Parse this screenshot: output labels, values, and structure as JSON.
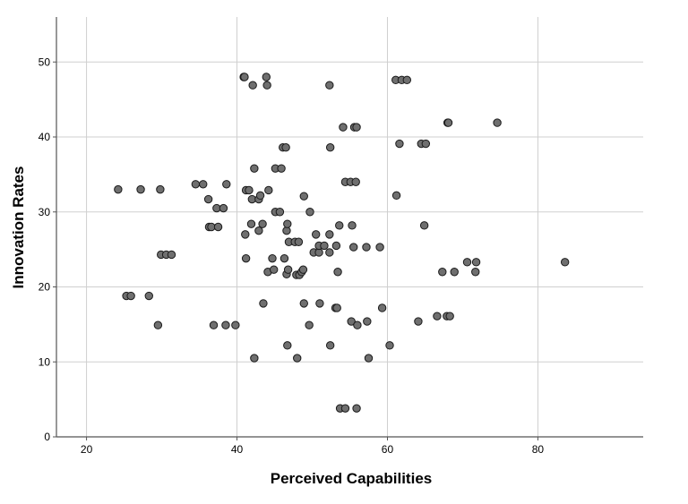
{
  "chart_data": {
    "type": "scatter",
    "xlabel": "Perceived Capabilities",
    "ylabel": "Innovation Rates",
    "xlim": [
      16,
      94
    ],
    "ylim": [
      0,
      56
    ],
    "xticks": [
      20,
      40,
      60,
      80
    ],
    "yticks": [
      0,
      10,
      20,
      30,
      40,
      50
    ],
    "grid": true,
    "colors": {
      "point_fill": "#6f6f6f",
      "point_stroke": "#1a1a1a",
      "grid": "#cfcfcf",
      "axis": "#555555"
    },
    "points": [
      [
        24.2,
        33.0
      ],
      [
        27.2,
        33.0
      ],
      [
        29.8,
        33.0
      ],
      [
        25.3,
        18.8
      ],
      [
        25.9,
        18.8
      ],
      [
        28.3,
        18.8
      ],
      [
        29.5,
        14.9
      ],
      [
        29.9,
        24.3
      ],
      [
        30.6,
        24.3
      ],
      [
        31.3,
        24.3
      ],
      [
        34.5,
        33.7
      ],
      [
        35.5,
        33.7
      ],
      [
        36.2,
        31.7
      ],
      [
        36.3,
        28.0
      ],
      [
        36.6,
        28.0
      ],
      [
        37.3,
        30.5
      ],
      [
        37.5,
        28.0
      ],
      [
        38.2,
        30.5
      ],
      [
        38.6,
        33.7
      ],
      [
        36.9,
        14.9
      ],
      [
        38.5,
        14.9
      ],
      [
        39.8,
        14.9
      ],
      [
        40.9,
        48.0
      ],
      [
        41.0,
        48.0
      ],
      [
        42.1,
        46.9
      ],
      [
        43.9,
        48.0
      ],
      [
        44.0,
        46.9
      ],
      [
        41.2,
        32.9
      ],
      [
        41.6,
        32.9
      ],
      [
        42.3,
        35.8
      ],
      [
        42.0,
        31.7
      ],
      [
        42.9,
        31.7
      ],
      [
        43.1,
        32.2
      ],
      [
        44.2,
        32.9
      ],
      [
        45.1,
        35.8
      ],
      [
        45.9,
        35.8
      ],
      [
        41.9,
        28.4
      ],
      [
        43.4,
        28.4
      ],
      [
        42.9,
        27.5
      ],
      [
        45.1,
        30.0
      ],
      [
        45.7,
        30.0
      ],
      [
        46.1,
        38.6
      ],
      [
        46.5,
        38.6
      ],
      [
        41.1,
        27.0
      ],
      [
        41.2,
        23.8
      ],
      [
        44.1,
        22.0
      ],
      [
        44.9,
        22.3
      ],
      [
        44.7,
        23.8
      ],
      [
        46.3,
        23.8
      ],
      [
        46.6,
        27.5
      ],
      [
        46.7,
        28.4
      ],
      [
        46.9,
        26.0
      ],
      [
        47.7,
        26.0
      ],
      [
        48.2,
        26.0
      ],
      [
        46.6,
        21.7
      ],
      [
        46.8,
        22.3
      ],
      [
        47.9,
        21.6
      ],
      [
        48.3,
        21.6
      ],
      [
        48.6,
        22.0
      ],
      [
        48.8,
        22.3
      ],
      [
        48.9,
        32.1
      ],
      [
        43.5,
        17.8
      ],
      [
        42.3,
        10.5
      ],
      [
        46.7,
        12.2
      ],
      [
        48.0,
        10.5
      ],
      [
        48.9,
        17.8
      ],
      [
        49.6,
        14.9
      ],
      [
        49.7,
        30.0
      ],
      [
        50.2,
        24.6
      ],
      [
        50.9,
        24.6
      ],
      [
        50.5,
        27.0
      ],
      [
        50.9,
        25.5
      ],
      [
        51.6,
        25.5
      ],
      [
        52.3,
        27.0
      ],
      [
        52.3,
        24.6
      ],
      [
        53.2,
        25.5
      ],
      [
        51.0,
        17.8
      ],
      [
        52.3,
        46.9
      ],
      [
        52.4,
        38.6
      ],
      [
        52.4,
        12.2
      ],
      [
        53.1,
        17.2
      ],
      [
        53.3,
        17.2
      ],
      [
        53.4,
        22.0
      ],
      [
        53.6,
        28.2
      ],
      [
        55.3,
        28.2
      ],
      [
        54.1,
        41.3
      ],
      [
        55.6,
        41.3
      ],
      [
        55.9,
        41.3
      ],
      [
        54.4,
        34.0
      ],
      [
        55.1,
        34.0
      ],
      [
        55.8,
        34.0
      ],
      [
        55.5,
        25.3
      ],
      [
        57.2,
        25.3
      ],
      [
        59.0,
        25.3
      ],
      [
        55.2,
        15.4
      ],
      [
        56.0,
        14.9
      ],
      [
        57.3,
        15.4
      ],
      [
        59.3,
        17.2
      ],
      [
        57.5,
        10.5
      ],
      [
        60.3,
        12.2
      ],
      [
        53.7,
        3.8
      ],
      [
        54.4,
        3.8
      ],
      [
        55.9,
        3.8
      ],
      [
        61.1,
        47.6
      ],
      [
        61.9,
        47.6
      ],
      [
        62.6,
        47.6
      ],
      [
        61.6,
        39.1
      ],
      [
        64.5,
        39.1
      ],
      [
        65.1,
        39.1
      ],
      [
        61.2,
        32.2
      ],
      [
        64.9,
        28.2
      ],
      [
        64.1,
        15.4
      ],
      [
        66.6,
        16.1
      ],
      [
        67.9,
        16.1
      ],
      [
        68.3,
        16.1
      ],
      [
        67.3,
        22.0
      ],
      [
        68.9,
        22.0
      ],
      [
        68.0,
        41.9
      ],
      [
        68.1,
        41.9
      ],
      [
        74.6,
        41.9
      ],
      [
        70.6,
        23.3
      ],
      [
        71.8,
        23.3
      ],
      [
        71.7,
        22.0
      ],
      [
        83.6,
        23.3
      ]
    ]
  }
}
